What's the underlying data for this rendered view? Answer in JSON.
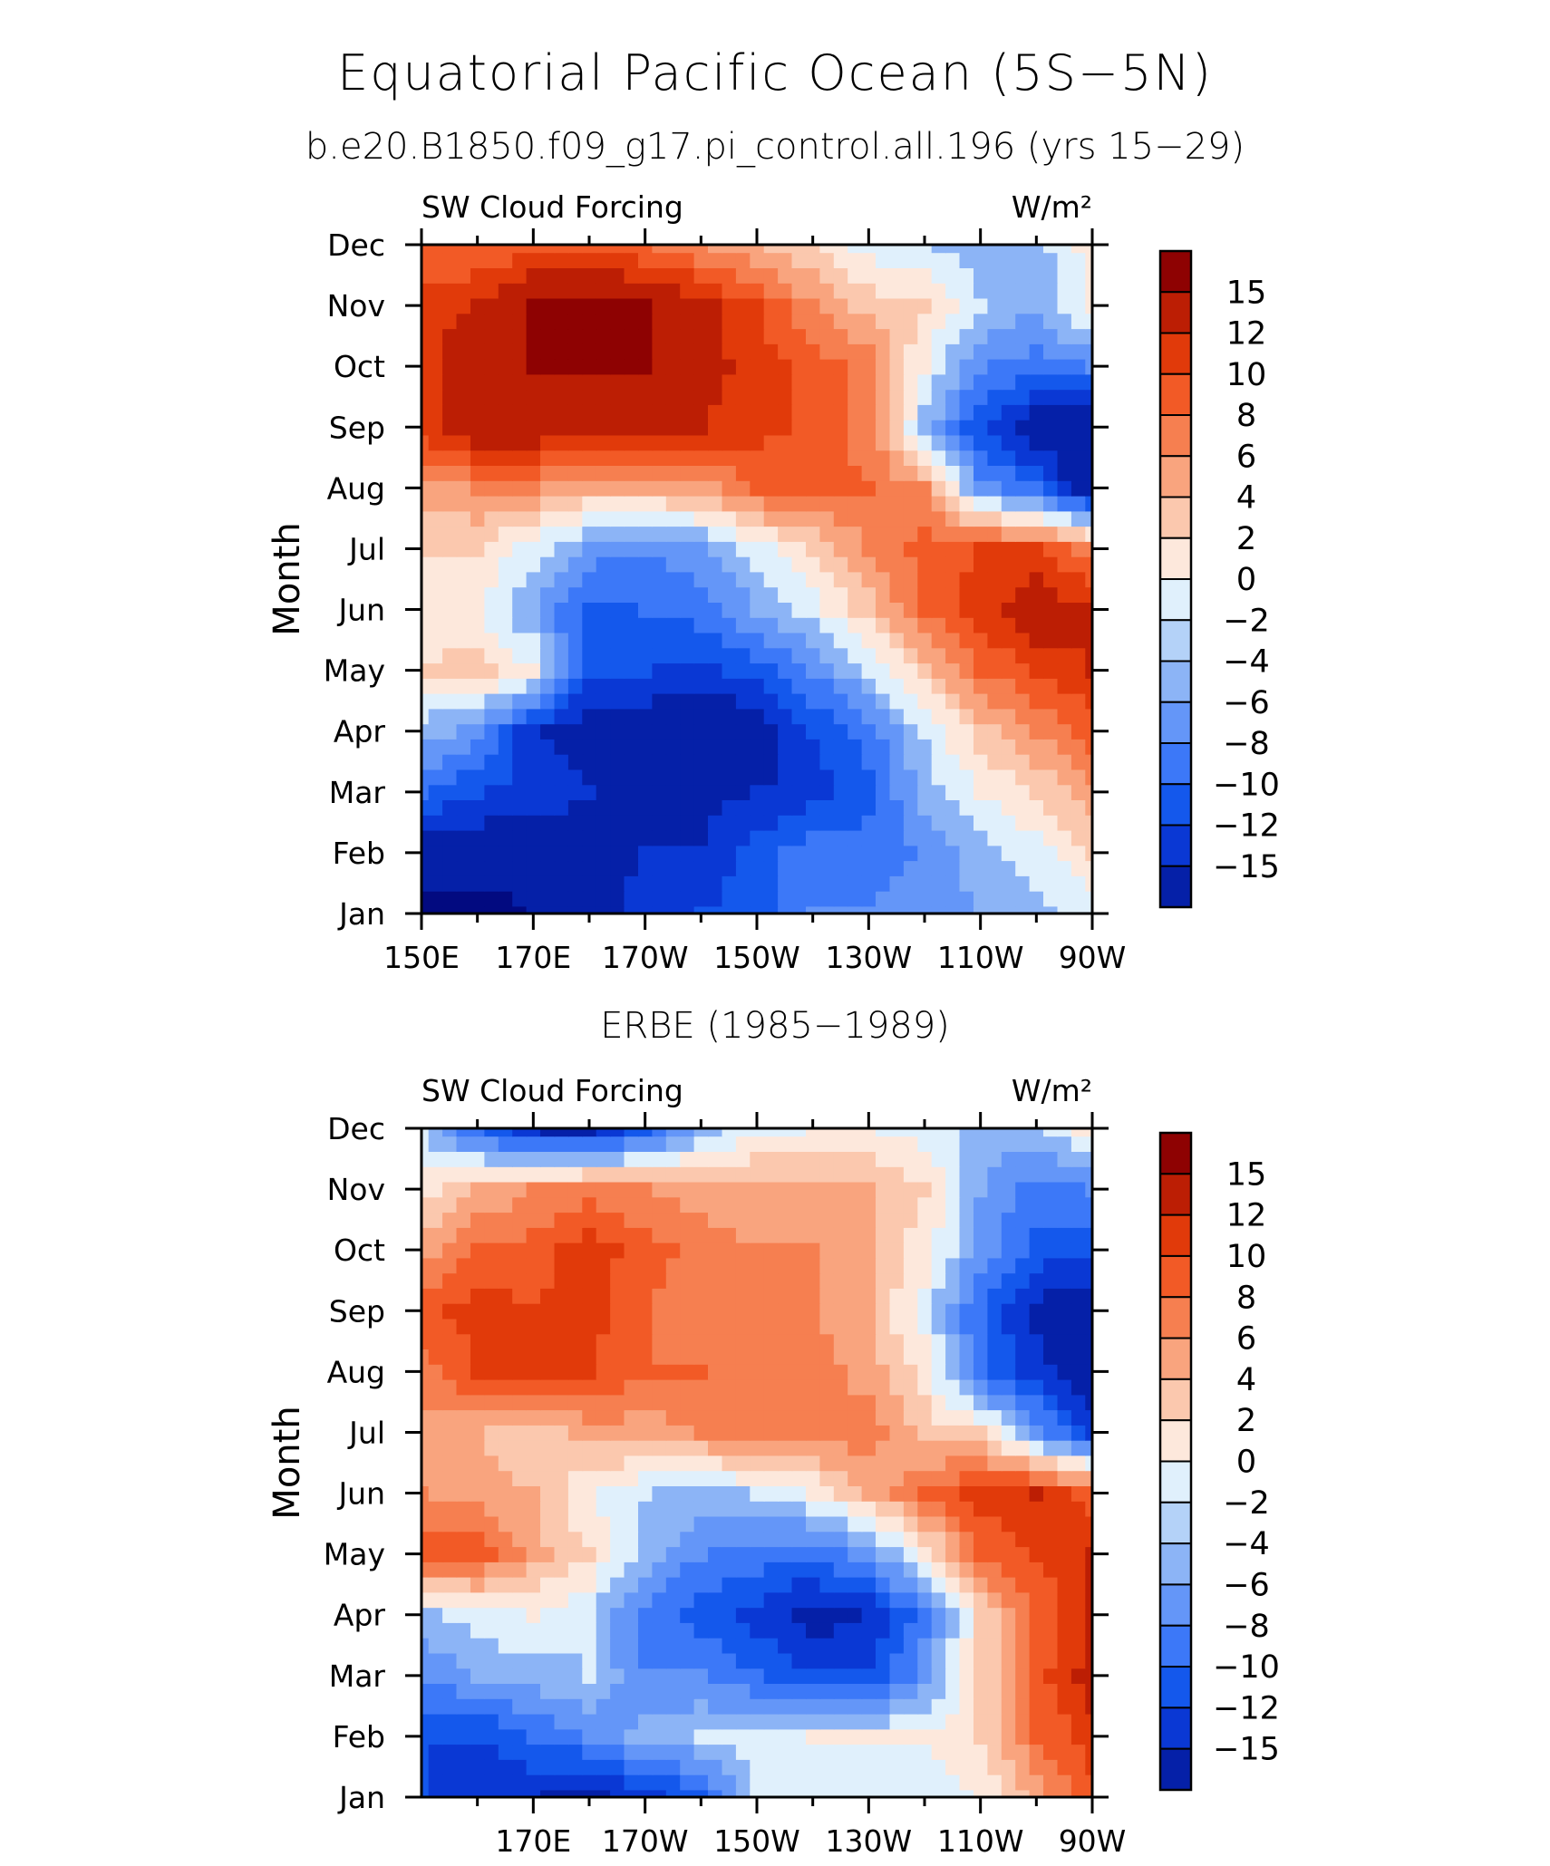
{
  "title": "Equatorial Pacific Ocean (5S−5N)",
  "subtitle": "b.e20.B1850.f09_g17.pi_control.all.196 (yrs 15−29)",
  "colors": {
    "scale": [
      "#e0f0fc",
      "#b4d2f8",
      "#8cb4f6",
      "#6496f8",
      "#3c78f8",
      "#1458ec",
      "#0a38d4",
      "#0520a8",
      "#020a80"
    ],
    "warm": [
      "#fde8dc",
      "#fbc8ae",
      "#f9a47e",
      "#f67f50",
      "#f25a26",
      "#e13a0a",
      "#bc1e04",
      "#8e0202"
    ]
  },
  "chart_data": [
    {
      "type": "heatmap",
      "title": "b.e20.B1850.f09_g17.pi_control.all.196 (yrs 15−29)",
      "left_label": "SW Cloud Forcing",
      "units": "W/m²",
      "ylabel": "Month",
      "xlabel": "",
      "x_tick_labels": [
        "150E",
        "170E",
        "170W",
        "150W",
        "130W",
        "110W",
        "90W"
      ],
      "x_lon": [
        150,
        170,
        190,
        210,
        230,
        250,
        270
      ],
      "xlim": [
        150,
        270
      ],
      "y_tick_labels": [
        "Jan",
        "Feb",
        "Mar",
        "Apr",
        "May",
        "Jun",
        "Jul",
        "Aug",
        "Sep",
        "Oct",
        "Nov",
        "Dec"
      ],
      "ylim": [
        1,
        12
      ],
      "colorbar_labels": [
        "15",
        "12",
        "10",
        "8",
        "6",
        "4",
        "2",
        "0",
        "−2",
        "−4",
        "−6",
        "−8",
        "−10",
        "−12",
        "−15"
      ],
      "levels": [
        -15,
        -12,
        -10,
        -8,
        -6,
        -4,
        -2,
        0,
        2,
        4,
        6,
        8,
        10,
        12,
        15
      ],
      "grid": {
        "lon": [
          150,
          160,
          170,
          180,
          190,
          200,
          210,
          220,
          230,
          240,
          250,
          260,
          270
        ],
        "month": [
          "Jan",
          "Feb",
          "Mar",
          "Apr",
          "May",
          "Jun",
          "Jul",
          "Aug",
          "Sep",
          "Oct",
          "Nov",
          "Dec"
        ],
        "values": [
          [
            -16,
            -16,
            -15,
            -14,
            -11,
            -10,
            -9,
            -6,
            -6,
            -5,
            -4,
            -3,
            -1
          ],
          [
            -14,
            -14,
            -14,
            -13,
            -12,
            -12,
            -9,
            -7,
            -7,
            -6,
            -3,
            -1,
            2
          ],
          [
            -8,
            -10,
            -11,
            -12,
            -13,
            -13,
            -12,
            -11,
            -9,
            -3,
            0,
            2,
            5
          ],
          [
            -3,
            -5,
            -12,
            -13,
            -14,
            -15,
            -14,
            -10,
            -7,
            -2,
            3,
            6,
            9
          ],
          [
            2,
            3,
            0,
            -10,
            -10,
            -11,
            -9,
            -6,
            -2,
            3,
            8,
            10,
            12
          ],
          [
            1,
            0,
            -4,
            -9,
            -8,
            -7,
            -4,
            -1,
            3,
            8,
            11,
            14,
            12
          ],
          [
            2,
            2,
            -1,
            -5,
            -6,
            -5,
            -1,
            2,
            6,
            9,
            10,
            10,
            7
          ],
          [
            5,
            6,
            6,
            4,
            4,
            5,
            8,
            9,
            8,
            6,
            -5,
            -8,
            -15
          ],
          [
            11,
            14,
            14,
            14,
            13,
            12,
            11,
            9,
            7,
            -3,
            -10,
            -14,
            -15
          ],
          [
            11,
            14,
            15,
            15,
            15,
            13,
            11,
            9,
            7,
            0,
            -6,
            -7,
            -6
          ],
          [
            11,
            12,
            15,
            16,
            15,
            13,
            10,
            6,
            3,
            2,
            -2,
            -4,
            1
          ],
          [
            8,
            8,
            9,
            9,
            8,
            6,
            4,
            2,
            -1,
            -2,
            -3,
            -3,
            1
          ]
        ]
      }
    },
    {
      "type": "heatmap",
      "title": "ERBE (1985−1989)",
      "left_label": "SW Cloud Forcing",
      "units": "W/m²",
      "ylabel": "Month",
      "xlabel": "",
      "x_tick_labels": [
        "170E",
        "170W",
        "150W",
        "130W",
        "110W",
        "90W"
      ],
      "x_lon": [
        170,
        190,
        210,
        230,
        250,
        270
      ],
      "xlim": [
        150,
        270
      ],
      "y_tick_labels": [
        "Jan",
        "Feb",
        "Mar",
        "Apr",
        "May",
        "Jun",
        "Jul",
        "Aug",
        "Sep",
        "Oct",
        "Nov",
        "Dec"
      ],
      "ylim": [
        1,
        12
      ],
      "colorbar_labels": [
        "15",
        "12",
        "10",
        "8",
        "6",
        "4",
        "2",
        "0",
        "−2",
        "−4",
        "−6",
        "−8",
        "−10",
        "−12",
        "−15"
      ],
      "levels": [
        -15,
        -12,
        -10,
        -8,
        -6,
        -4,
        -2,
        0,
        2,
        4,
        6,
        8,
        10,
        12,
        15
      ],
      "grid": {
        "lon": [
          150,
          160,
          170,
          180,
          190,
          200,
          210,
          220,
          230,
          240,
          250,
          260,
          270
        ],
        "month": [
          "Jan",
          "Feb",
          "Mar",
          "Apr",
          "May",
          "Jun",
          "Jul",
          "Aug",
          "Sep",
          "Oct",
          "Nov",
          "Dec"
        ],
        "values": [
          [
            -10,
            -12,
            -12,
            -13,
            -11,
            -9,
            -2,
            -1,
            -1,
            -2,
            0,
            5,
            9
          ],
          [
            -10,
            -10,
            -8,
            -6,
            -3,
            -2,
            -1,
            0,
            0,
            0,
            2,
            8,
            11
          ],
          [
            -6,
            -4,
            -3,
            -2,
            -6,
            -6,
            -8,
            -10,
            -10,
            -5,
            2,
            9,
            13
          ],
          [
            -3,
            -1,
            0,
            -2,
            -7,
            -9,
            -11,
            -13,
            -12,
            -7,
            2,
            8,
            12
          ],
          [
            9,
            9,
            5,
            2,
            -3,
            -6,
            -7,
            -8,
            -5,
            0,
            8,
            10,
            12
          ],
          [
            6,
            5,
            4,
            0,
            -2,
            -3,
            -2,
            0,
            4,
            8,
            11,
            12,
            9
          ],
          [
            5,
            4,
            2,
            5,
            5,
            6,
            7,
            7,
            7,
            3,
            2,
            -5,
            -11
          ],
          [
            7,
            10,
            11,
            10,
            8,
            8,
            7,
            7,
            5,
            1,
            -8,
            -11,
            -14
          ],
          [
            9,
            11,
            10,
            11,
            8,
            7,
            6,
            6,
            4,
            -1,
            -8,
            -13,
            -14
          ],
          [
            5,
            8,
            9,
            11,
            9,
            7,
            6,
            6,
            4,
            1,
            -5,
            -9,
            -10
          ],
          [
            1,
            4,
            6,
            7,
            6,
            5,
            5,
            5,
            4,
            2,
            -4,
            -7,
            -6
          ],
          [
            -2,
            -8,
            -12,
            -13,
            -9,
            -3,
            -1,
            0,
            0,
            -1,
            -3,
            -3,
            1
          ]
        ]
      }
    }
  ]
}
